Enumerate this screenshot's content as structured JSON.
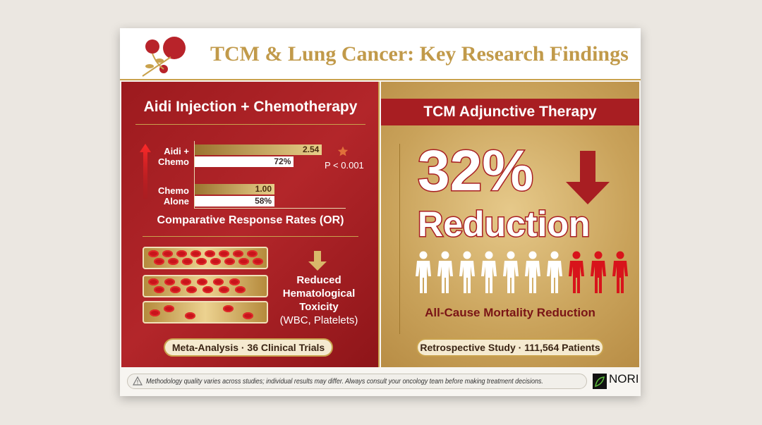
{
  "title": "TCM & Lung Cancer: Key Research Findings",
  "left": {
    "heading": "Aidi Injection + Chemotherapy",
    "chart_caption": "Comparative Response Rates (OR)",
    "significance": "P < 0.001",
    "toxicity": {
      "line1": "Reduced",
      "line2": "Hematological",
      "line3": "Toxicity",
      "line4": "(WBC, Platelets)"
    },
    "source": "Meta-Analysis · 36 Clinical Trials"
  },
  "chart_data": {
    "type": "bar",
    "title": "Comparative Response Rates (OR)",
    "categories": [
      "Aidi + Chemo",
      "Chemo Alone"
    ],
    "category_lines": [
      [
        "Aidi +",
        "Chemo"
      ],
      [
        "Chemo",
        "Alone"
      ]
    ],
    "series": [
      {
        "values": [
          2.54,
          1.0
        ],
        "labels": [
          "2.54",
          "1.00"
        ],
        "color": "#d4b36a"
      },
      {
        "values": [
          72,
          58
        ],
        "labels": [
          "72%",
          "58%"
        ],
        "color": "#ffffff"
      }
    ],
    "annotation": "P < 0.001"
  },
  "right": {
    "heading": "TCM Adjunctive Therapy",
    "big_number": "32%",
    "big_word": "Reduction",
    "people": {
      "total": 10,
      "highlighted": 3
    },
    "caption": "All-Cause Mortality Reduction",
    "source": "Retrospective Study · 111,564 Patients"
  },
  "footer": {
    "disclaimer": "Methodology quality varies across studies; individual results may differ. Always consult your oncology team before making treatment decisions.",
    "logo": "NORI"
  },
  "colors": {
    "red": "#a81e22",
    "gold": "#c9a24d",
    "person_red": "#d8141b"
  }
}
